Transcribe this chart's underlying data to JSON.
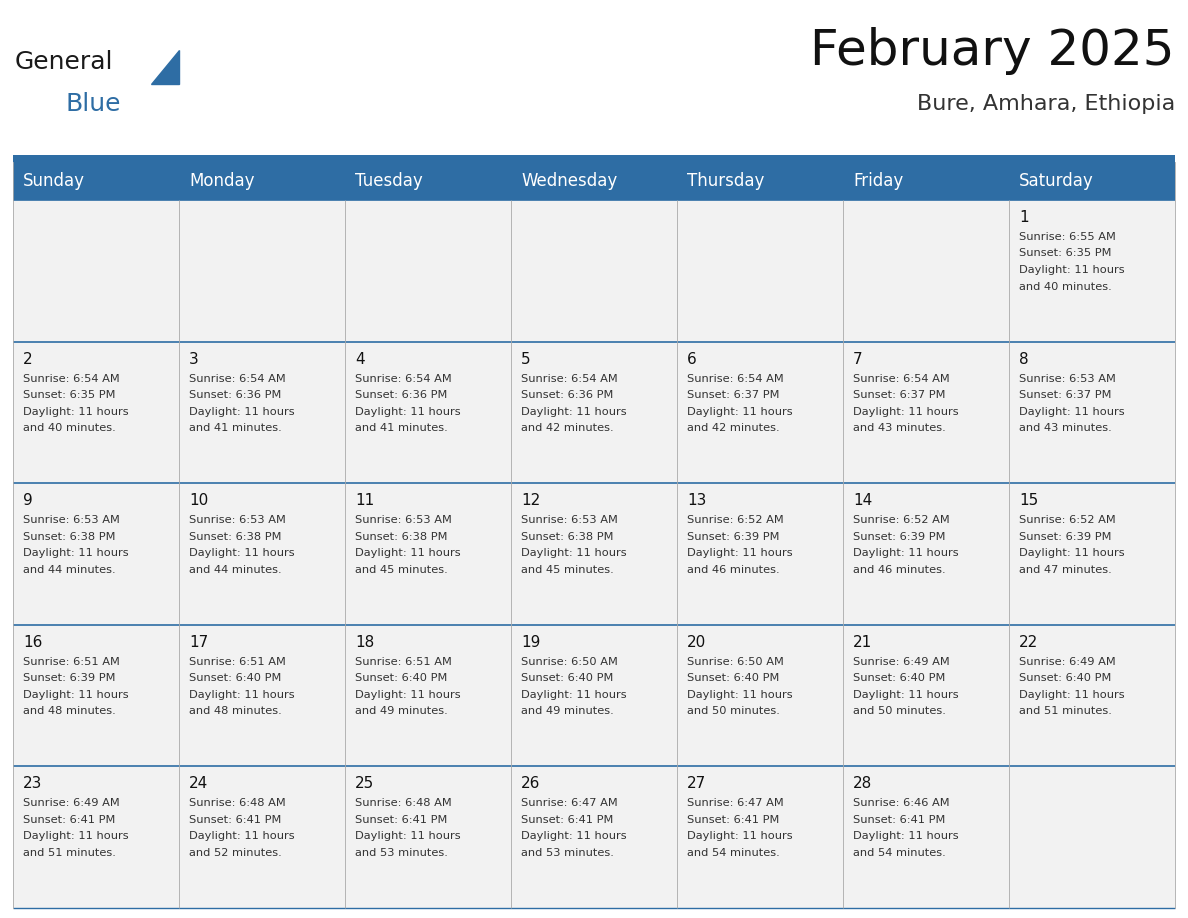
{
  "title": "February 2025",
  "subtitle": "Bure, Amhara, Ethiopia",
  "header_color": "#2E6DA4",
  "header_text_color": "#FFFFFF",
  "cell_bg_color": "#F2F2F2",
  "border_color": "#2E6DA4",
  "col_border_color": "#AAAAAA",
  "day_headers": [
    "Sunday",
    "Monday",
    "Tuesday",
    "Wednesday",
    "Thursday",
    "Friday",
    "Saturday"
  ],
  "title_fontsize": 36,
  "subtitle_fontsize": 16,
  "header_fontsize": 12,
  "day_num_fontsize": 11,
  "info_fontsize": 8.2,
  "logo_general_fontsize": 18,
  "logo_blue_fontsize": 18,
  "calendar_data": [
    [
      null,
      null,
      null,
      null,
      null,
      null,
      {
        "day": "1",
        "sunrise": "6:55 AM",
        "sunset": "6:35 PM",
        "daylight_l1": "11 hours",
        "daylight_l2": "and 40 minutes."
      }
    ],
    [
      {
        "day": "2",
        "sunrise": "6:54 AM",
        "sunset": "6:35 PM",
        "daylight_l1": "11 hours",
        "daylight_l2": "and 40 minutes."
      },
      {
        "day": "3",
        "sunrise": "6:54 AM",
        "sunset": "6:36 PM",
        "daylight_l1": "11 hours",
        "daylight_l2": "and 41 minutes."
      },
      {
        "day": "4",
        "sunrise": "6:54 AM",
        "sunset": "6:36 PM",
        "daylight_l1": "11 hours",
        "daylight_l2": "and 41 minutes."
      },
      {
        "day": "5",
        "sunrise": "6:54 AM",
        "sunset": "6:36 PM",
        "daylight_l1": "11 hours",
        "daylight_l2": "and 42 minutes."
      },
      {
        "day": "6",
        "sunrise": "6:54 AM",
        "sunset": "6:37 PM",
        "daylight_l1": "11 hours",
        "daylight_l2": "and 42 minutes."
      },
      {
        "day": "7",
        "sunrise": "6:54 AM",
        "sunset": "6:37 PM",
        "daylight_l1": "11 hours",
        "daylight_l2": "and 43 minutes."
      },
      {
        "day": "8",
        "sunrise": "6:53 AM",
        "sunset": "6:37 PM",
        "daylight_l1": "11 hours",
        "daylight_l2": "and 43 minutes."
      }
    ],
    [
      {
        "day": "9",
        "sunrise": "6:53 AM",
        "sunset": "6:38 PM",
        "daylight_l1": "11 hours",
        "daylight_l2": "and 44 minutes."
      },
      {
        "day": "10",
        "sunrise": "6:53 AM",
        "sunset": "6:38 PM",
        "daylight_l1": "11 hours",
        "daylight_l2": "and 44 minutes."
      },
      {
        "day": "11",
        "sunrise": "6:53 AM",
        "sunset": "6:38 PM",
        "daylight_l1": "11 hours",
        "daylight_l2": "and 45 minutes."
      },
      {
        "day": "12",
        "sunrise": "6:53 AM",
        "sunset": "6:38 PM",
        "daylight_l1": "11 hours",
        "daylight_l2": "and 45 minutes."
      },
      {
        "day": "13",
        "sunrise": "6:52 AM",
        "sunset": "6:39 PM",
        "daylight_l1": "11 hours",
        "daylight_l2": "and 46 minutes."
      },
      {
        "day": "14",
        "sunrise": "6:52 AM",
        "sunset": "6:39 PM",
        "daylight_l1": "11 hours",
        "daylight_l2": "and 46 minutes."
      },
      {
        "day": "15",
        "sunrise": "6:52 AM",
        "sunset": "6:39 PM",
        "daylight_l1": "11 hours",
        "daylight_l2": "and 47 minutes."
      }
    ],
    [
      {
        "day": "16",
        "sunrise": "6:51 AM",
        "sunset": "6:39 PM",
        "daylight_l1": "11 hours",
        "daylight_l2": "and 48 minutes."
      },
      {
        "day": "17",
        "sunrise": "6:51 AM",
        "sunset": "6:40 PM",
        "daylight_l1": "11 hours",
        "daylight_l2": "and 48 minutes."
      },
      {
        "day": "18",
        "sunrise": "6:51 AM",
        "sunset": "6:40 PM",
        "daylight_l1": "11 hours",
        "daylight_l2": "and 49 minutes."
      },
      {
        "day": "19",
        "sunrise": "6:50 AM",
        "sunset": "6:40 PM",
        "daylight_l1": "11 hours",
        "daylight_l2": "and 49 minutes."
      },
      {
        "day": "20",
        "sunrise": "6:50 AM",
        "sunset": "6:40 PM",
        "daylight_l1": "11 hours",
        "daylight_l2": "and 50 minutes."
      },
      {
        "day": "21",
        "sunrise": "6:49 AM",
        "sunset": "6:40 PM",
        "daylight_l1": "11 hours",
        "daylight_l2": "and 50 minutes."
      },
      {
        "day": "22",
        "sunrise": "6:49 AM",
        "sunset": "6:40 PM",
        "daylight_l1": "11 hours",
        "daylight_l2": "and 51 minutes."
      }
    ],
    [
      {
        "day": "23",
        "sunrise": "6:49 AM",
        "sunset": "6:41 PM",
        "daylight_l1": "11 hours",
        "daylight_l2": "and 51 minutes."
      },
      {
        "day": "24",
        "sunrise": "6:48 AM",
        "sunset": "6:41 PM",
        "daylight_l1": "11 hours",
        "daylight_l2": "and 52 minutes."
      },
      {
        "day": "25",
        "sunrise": "6:48 AM",
        "sunset": "6:41 PM",
        "daylight_l1": "11 hours",
        "daylight_l2": "and 53 minutes."
      },
      {
        "day": "26",
        "sunrise": "6:47 AM",
        "sunset": "6:41 PM",
        "daylight_l1": "11 hours",
        "daylight_l2": "and 53 minutes."
      },
      {
        "day": "27",
        "sunrise": "6:47 AM",
        "sunset": "6:41 PM",
        "daylight_l1": "11 hours",
        "daylight_l2": "and 54 minutes."
      },
      {
        "day": "28",
        "sunrise": "6:46 AM",
        "sunset": "6:41 PM",
        "daylight_l1": "11 hours",
        "daylight_l2": "and 54 minutes."
      },
      null
    ]
  ]
}
